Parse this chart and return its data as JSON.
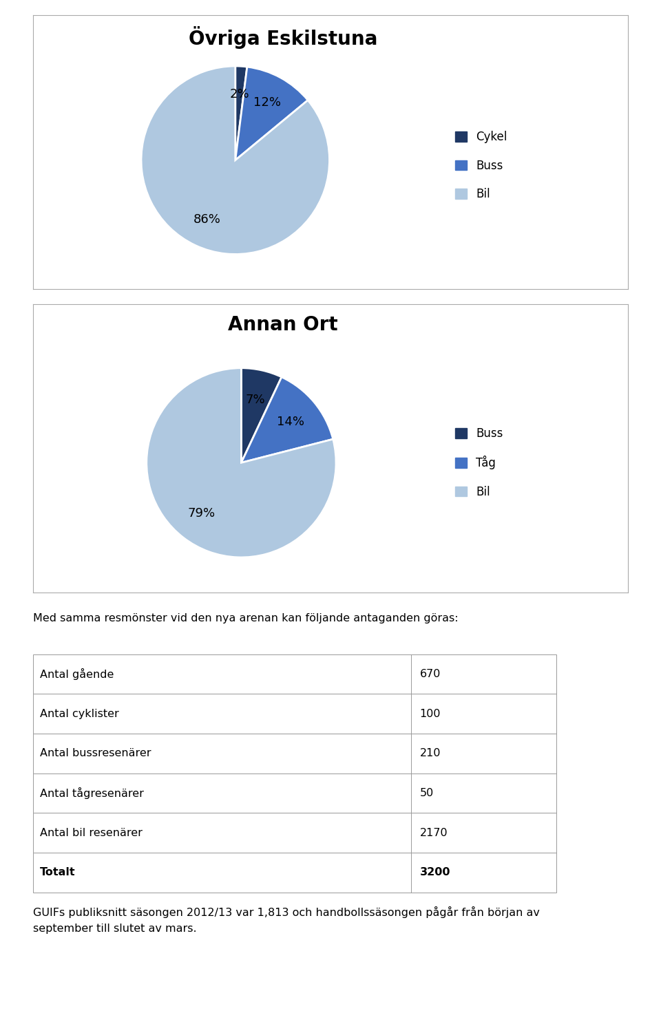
{
  "chart1_title": "Övriga Eskilstuna",
  "chart1_labels": [
    "Cykel",
    "Buss",
    "Bil"
  ],
  "chart1_values": [
    2,
    12,
    86
  ],
  "chart1_colors": [
    "#1F3864",
    "#4472C4",
    "#AFC8E0"
  ],
  "chart1_startangle": 90,
  "chart2_title": "Annan Ort",
  "chart2_labels": [
    "Buss",
    "Tåg",
    "Bil"
  ],
  "chart2_values": [
    7,
    14,
    79
  ],
  "chart2_colors": [
    "#1F3864",
    "#4472C4",
    "#AFC8E0"
  ],
  "chart2_startangle": 90,
  "table_intro": "Med samma resmönster vid den nya arenan kan följande antaganden göras:",
  "table_rows": [
    [
      "Antal gående",
      "670"
    ],
    [
      "Antal cyklister",
      "100"
    ],
    [
      "Antal bussresenärer",
      "210"
    ],
    [
      "Antal tågresenärer",
      "50"
    ],
    [
      "Antal bil resenärer",
      "2170"
    ],
    [
      "Totalt",
      "3200"
    ]
  ],
  "footer_text": "GUIFs publiksnitt säsongen 2012/13 var 1,813 och handbollssäsongen pågår från början av\nseptember till slutet av mars.",
  "bg_color": "#FFFFFF"
}
